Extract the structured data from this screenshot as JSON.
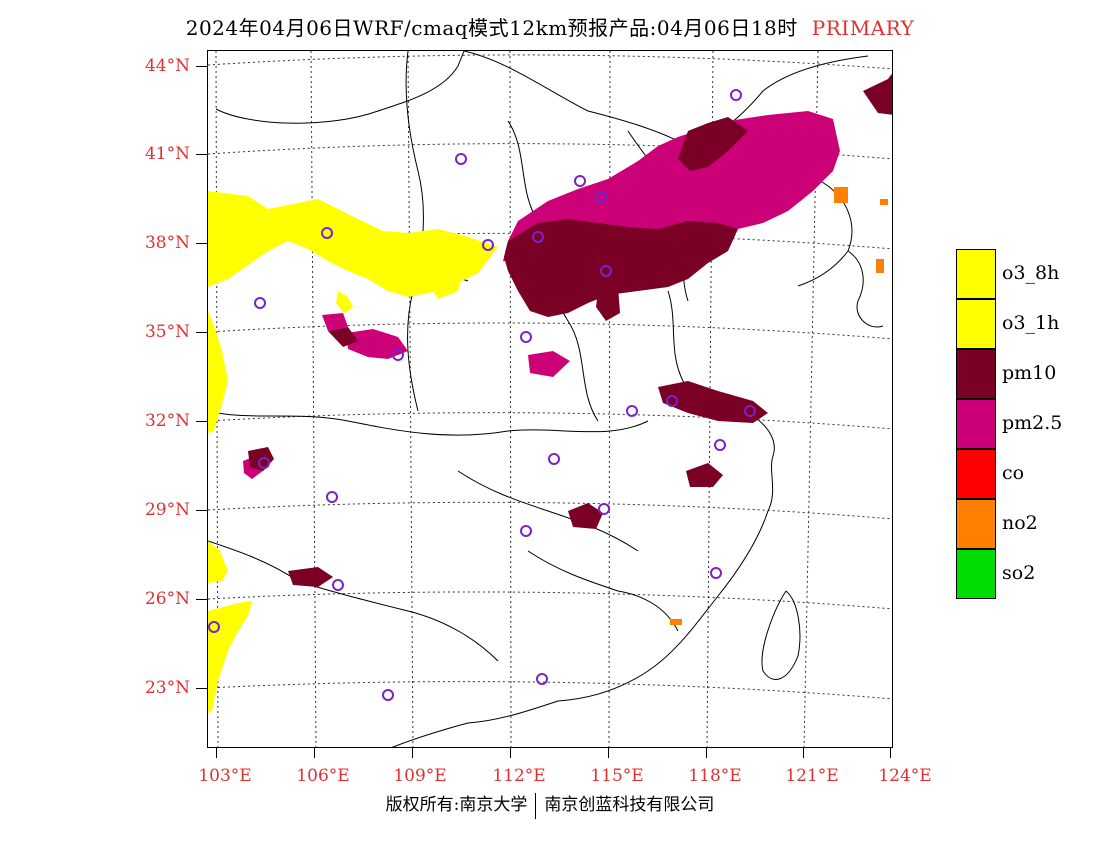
{
  "title": {
    "main": "2024年04月06日WRF/cmaq模式12km预报产品:04月06日18时",
    "tag": "PRIMARY"
  },
  "axes": {
    "lat_labels": [
      "44°N",
      "41°N",
      "38°N",
      "35°N",
      "32°N",
      "29°N",
      "26°N",
      "23°N"
    ],
    "lon_labels": [
      "103°E",
      "106°E",
      "109°E",
      "112°E",
      "115°E",
      "118°E",
      "121°E",
      "124°E"
    ]
  },
  "legend": [
    {
      "label": "o3_8h",
      "color": "#ffff00"
    },
    {
      "label": "o3_1h",
      "color": "#ffff00"
    },
    {
      "label": "pm10",
      "color": "#7a0026"
    },
    {
      "label": "pm2.5",
      "color": "#cc0077"
    },
    {
      "label": "co",
      "color": "#ff0000"
    },
    {
      "label": "no2",
      "color": "#ff7f00"
    },
    {
      "label": "so2",
      "color": "#00dd00"
    }
  ],
  "footer": {
    "left": "版权所有:南京大学",
    "right": "南京创蓝科技有限公司"
  },
  "colors": {
    "axis_label": "#e03030",
    "station_marker": "#7a22cc",
    "o3": "#ffff00",
    "pm10": "#7a0026",
    "pm25": "#cc0077",
    "no2": "#ff7f00"
  }
}
